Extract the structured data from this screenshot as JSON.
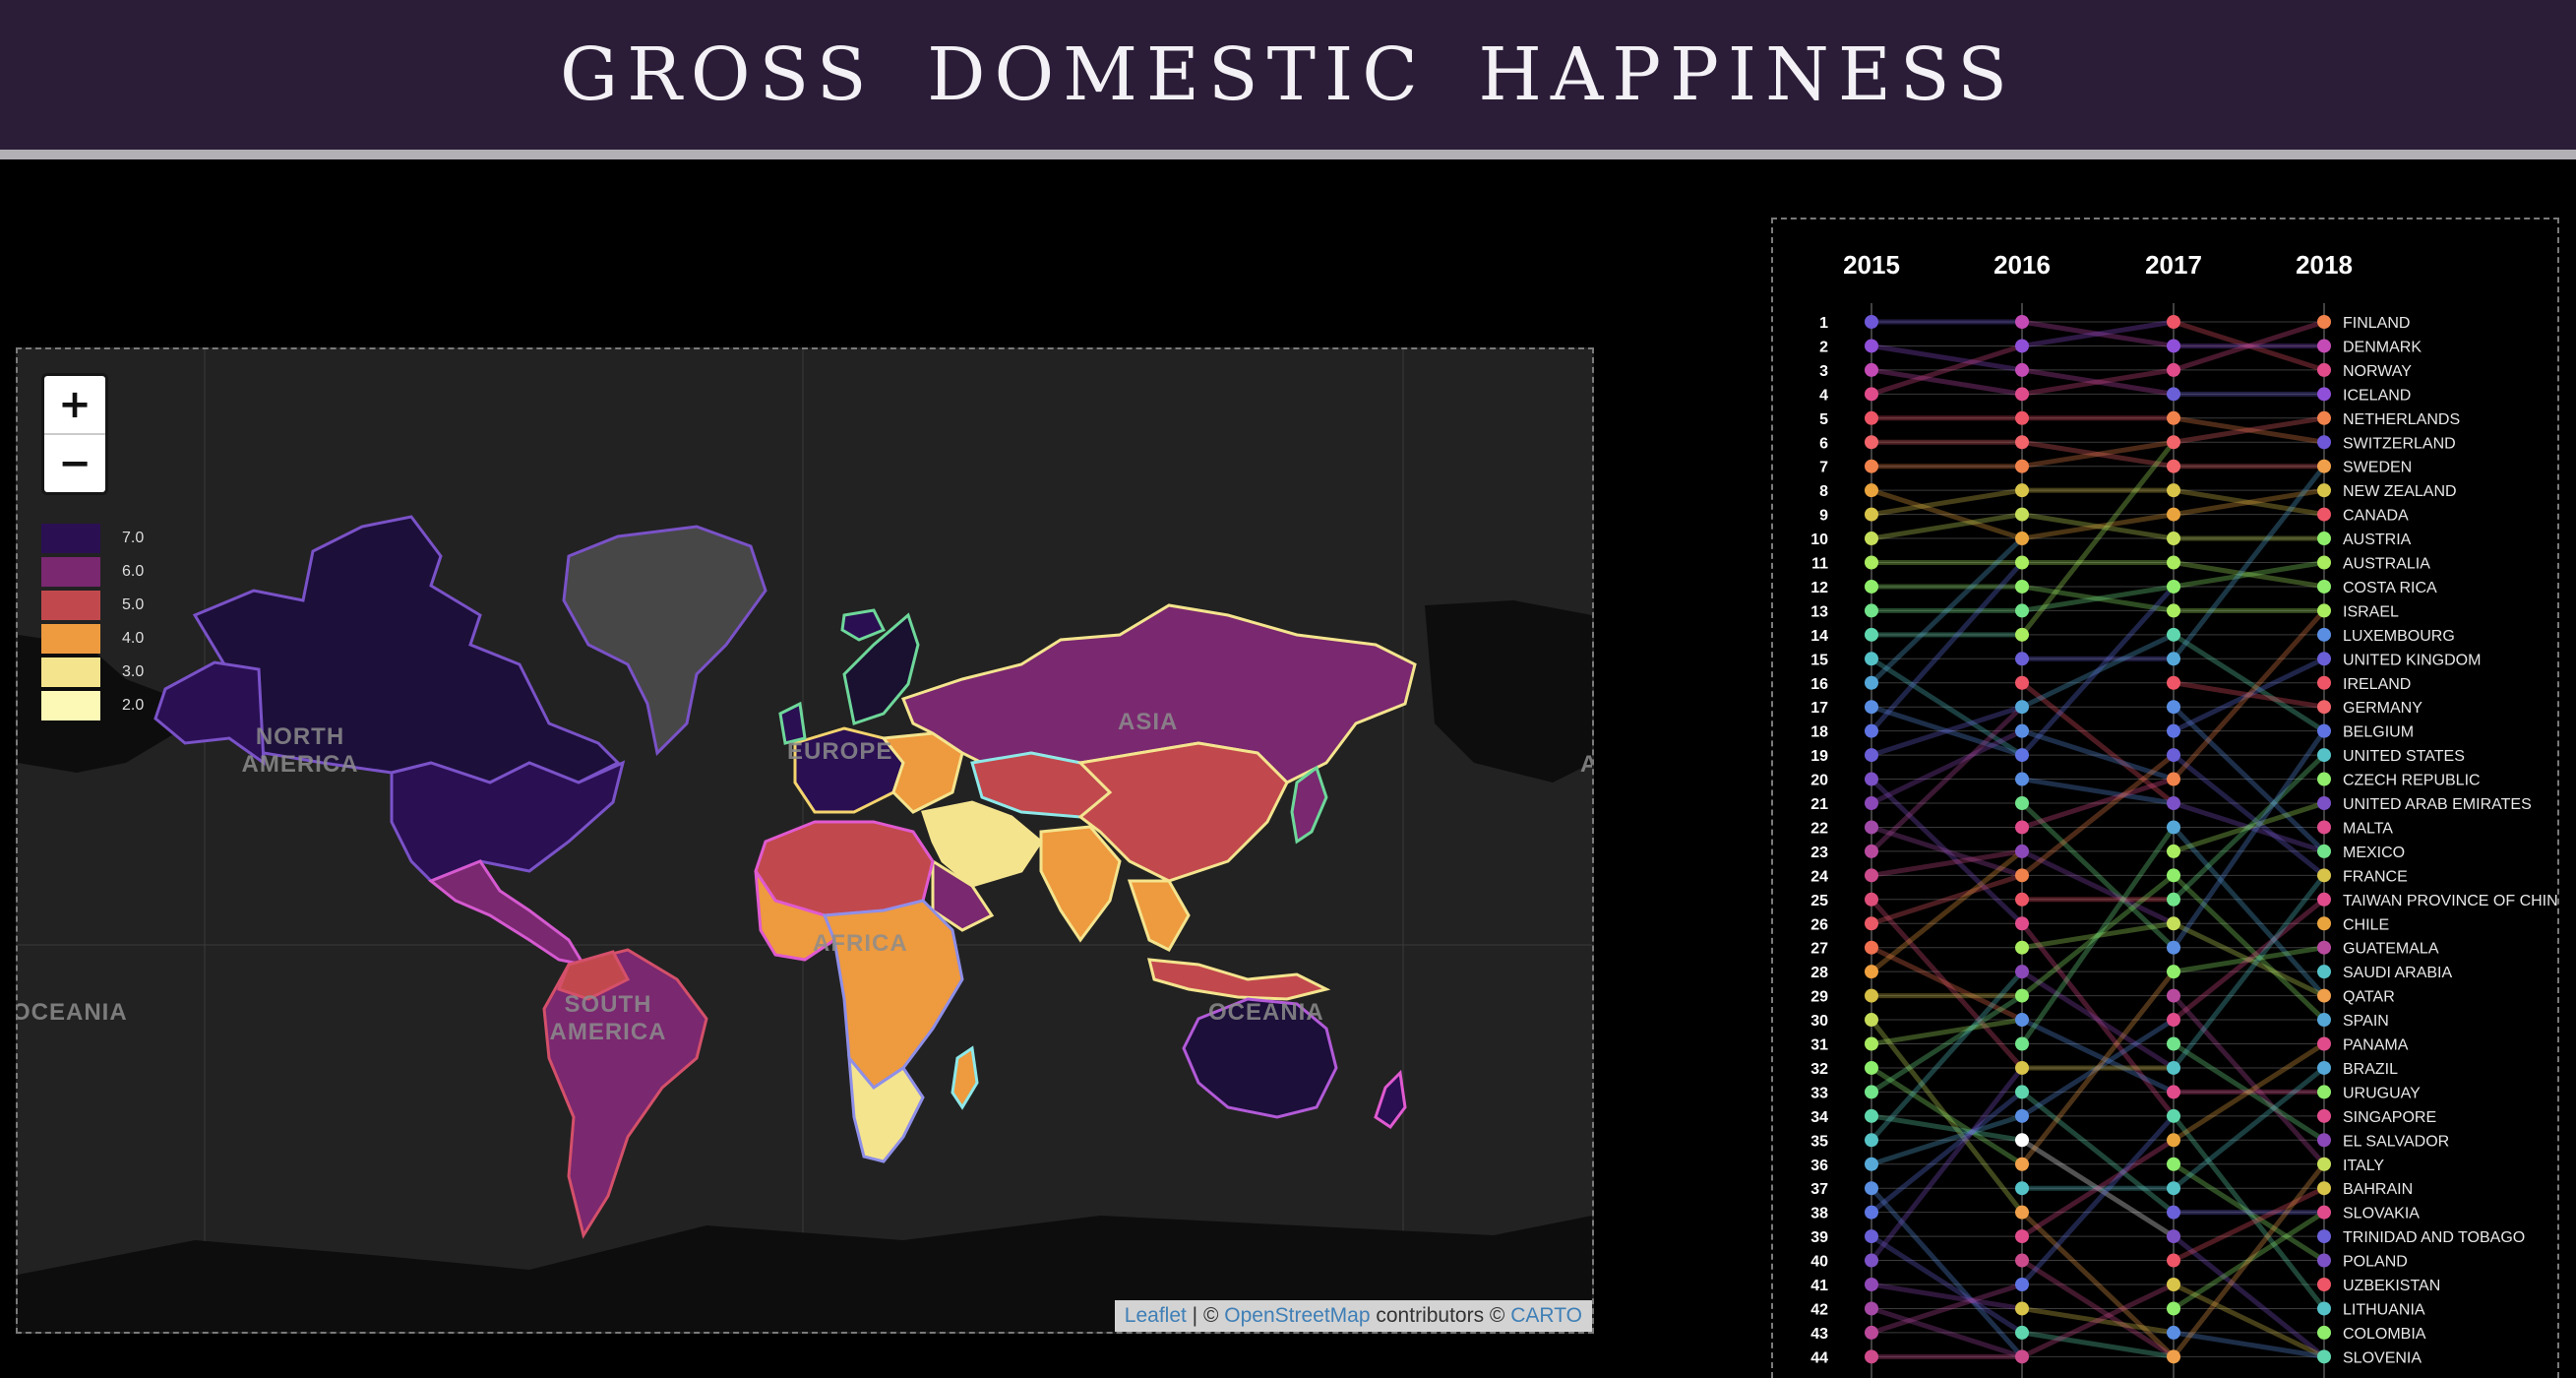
{
  "page": {
    "title": "GROSS DOMESTIC HAPPINESS"
  },
  "map": {
    "zoom_in_label": "+",
    "zoom_out_label": "−",
    "legend": [
      {
        "label": "7.0",
        "color": "#2a0f53"
      },
      {
        "label": "6.0",
        "color": "#7a2870"
      },
      {
        "label": "5.0",
        "color": "#c1494d"
      },
      {
        "label": "4.0",
        "color": "#ee9a3e"
      },
      {
        "label": "3.0",
        "color": "#f4e48e"
      },
      {
        "label": "2.0",
        "color": "#fcf9b6"
      }
    ],
    "continents": {
      "north_america": "NORTH\nAMERICA",
      "europe": "EUROPE",
      "asia": "ASIA",
      "africa": "AFRICA",
      "south_america": "SOUTH\nAMERICA",
      "oceania": "OCEANIA",
      "oceania_left": "OCEANIA",
      "asia_edge": "A"
    },
    "attribution": {
      "leaflet": "Leaflet",
      "sep": " | © ",
      "osm": "OpenStreetMap",
      "contrib": " contributors © ",
      "carto": "CARTO"
    }
  },
  "chart_data": {
    "type": "line",
    "title": "",
    "years": [
      "2015",
      "2016",
      "2017",
      "2018"
    ],
    "ranks": [
      1,
      2,
      3,
      4,
      5,
      6,
      7,
      8,
      9,
      10,
      11,
      12,
      13,
      14,
      15,
      16,
      17,
      18,
      19,
      20,
      21,
      22,
      23,
      24,
      25,
      26,
      27,
      28,
      29,
      30,
      31,
      32,
      33,
      34,
      35,
      36,
      37,
      38,
      39,
      40,
      41,
      42,
      43,
      44
    ],
    "countries_2018": [
      "FINLAND",
      "DENMARK",
      "NORWAY",
      "ICELAND",
      "NETHERLANDS",
      "SWITZERLAND",
      "SWEDEN",
      "NEW ZEALAND",
      "CANADA",
      "AUSTRIA",
      "AUSTRALIA",
      "COSTA RICA",
      "ISRAEL",
      "LUXEMBOURG",
      "UNITED KINGDOM",
      "IRELAND",
      "GERMANY",
      "BELGIUM",
      "UNITED STATES",
      "CZECH REPUBLIC",
      "UNITED ARAB EMIRATES",
      "MALTA",
      "MEXICO",
      "FRANCE",
      "TAIWAN PROVINCE OF CHINA",
      "CHILE",
      "GUATEMALA",
      "SAUDI ARABIA",
      "QATAR",
      "SPAIN",
      "PANAMA",
      "BRAZIL",
      "URUGUAY",
      "SINGAPORE",
      "EL SALVADOR",
      "ITALY",
      "BAHRAIN",
      "SLOVAKIA",
      "TRINIDAD AND TOBAGO",
      "POLAND",
      "UZBEKISTAN",
      "LITHUANIA",
      "COLOMBIA",
      "SLOVENIA"
    ],
    "dot_colors": {
      "2015": [
        "#6e58d8",
        "#8f4fd8",
        "#c44bb5",
        "#e04c8b",
        "#ee5566",
        "#f0646a",
        "#f0824c",
        "#eaa43e",
        "#d9c44a",
        "#c6df5a",
        "#a9ec5f",
        "#8fed6b",
        "#71e38a",
        "#5fd6ae",
        "#55c2c8",
        "#55a7d8",
        "#5a8ee3",
        "#5f73e3",
        "#6a5fd7",
        "#7c50c6",
        "#8b48b8",
        "#a24aa8",
        "#b84a9e",
        "#cc4b8d",
        "#dd4e7a",
        "#ea5a66",
        "#f0704f",
        "#efa03f",
        "#d5bf45",
        "#c5dc58",
        "#a7ea60",
        "#8ded6c",
        "#71e489",
        "#5fd7ac",
        "#56c3c6",
        "#57aad8",
        "#5a8fe2",
        "#5e76e2",
        "#6a60d7",
        "#7d51c6",
        "#9049b6",
        "#a649a6",
        "#bb499a",
        "#d04b8b"
      ],
      "2016": [
        "#c44bb5",
        "#8f4fd8",
        "#c44bb5",
        "#e04c8b",
        "#ee5566",
        "#f0646a",
        "#f0824c",
        "#d9c44a",
        "#c6df5a",
        "#eaa43e",
        "#a9ec5f",
        "#8fed6b",
        "#71e38a",
        "#a9ec5f",
        "#6a5fd7",
        "#ee5566",
        "#55a7d8",
        "#5a8ee3",
        "#5f73e3",
        "#5a8ee3",
        "#71e38a",
        "#e04c8b",
        "#8b48b8",
        "#f0824c",
        "#ee5566",
        "#e04c8b",
        "#a9ec5f",
        "#8b48b8",
        "#8fed6b",
        "#5a8ee3",
        "#71e38a",
        "#d9c44a",
        "#5fd6ae",
        "#5a8ee3",
        "#ffffff",
        "#f0a04a",
        "#55c2c8",
        "#f0a04a",
        "#e04c8b",
        "#cc4b8d",
        "#5f73e3",
        "#d9c44a",
        "#5fd6ae",
        "#cc4b8d"
      ],
      "2017": [
        "#ee5566",
        "#8f4fd8",
        "#e04c8b",
        "#6a5fd7",
        "#f0824c",
        "#f0646a",
        "#f0646a",
        "#d9c44a",
        "#eaa43e",
        "#c6df5a",
        "#a9ec5f",
        "#8fed6b",
        "#a9ec5f",
        "#5fd6ae",
        "#55a7d8",
        "#ee5566",
        "#5a8ee3",
        "#5f73e3",
        "#6a5fd7",
        "#f0824c",
        "#7c50c6",
        "#55a7d8",
        "#a9ec5f",
        "#8fed6b",
        "#71e38a",
        "#c6df5a",
        "#5a8ee3",
        "#8fed6b",
        "#b84a9e",
        "#e04c8b",
        "#71e38a",
        "#55c2c8",
        "#e04c8b",
        "#5fd7ac",
        "#eaa43e",
        "#8ded6c",
        "#55c2c8",
        "#6a60d7",
        "#7d51c6",
        "#ee5566",
        "#d9c44a",
        "#8fed6b",
        "#5a8ee3",
        "#f0a04a"
      ],
      "2018": [
        "#f0824c",
        "#c44bb5",
        "#e04c8b",
        "#8f4fd8",
        "#f0824c",
        "#6e58d8",
        "#f0a04a",
        "#d9c44a",
        "#ee5566",
        "#8fed6b",
        "#a9ec5f",
        "#8fed6b",
        "#a9ec5f",
        "#5a8ee3",
        "#6a5fd7",
        "#ee5566",
        "#f0646a",
        "#5f73e3",
        "#55c2c8",
        "#8fed6b",
        "#7c50c6",
        "#e04c8b",
        "#71e38a",
        "#d9c44a",
        "#e04c8b",
        "#eaa43e",
        "#b84a9e",
        "#55c2c8",
        "#f0a04a",
        "#55a7d8",
        "#e04c8b",
        "#55a7d8",
        "#8fed6b",
        "#e04c8b",
        "#8b48b8",
        "#c6df5a",
        "#d9c44a",
        "#e04c8b",
        "#6a60d7",
        "#7d51c6",
        "#ee5566",
        "#55c2c8",
        "#8fed6b",
        "#5fd6ae"
      ]
    }
  }
}
